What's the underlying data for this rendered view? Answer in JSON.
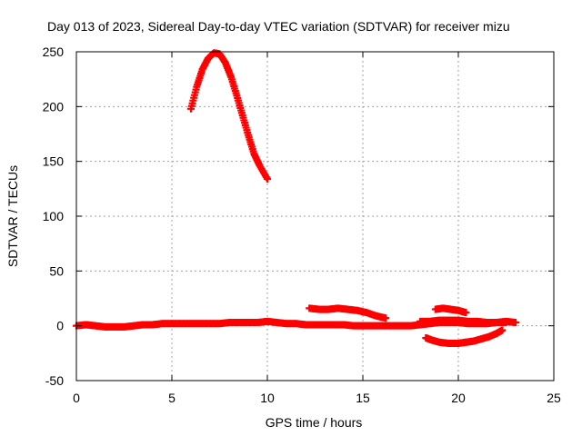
{
  "chart_data": {
    "type": "scatter",
    "title": "Day 013 of 2023, Sidereal Day-to-day VTEC variation (SDTVAR) for receiver mizu",
    "xlabel": "GPS time / hours",
    "ylabel": "SDTVAR / TECUs",
    "xlim": [
      0,
      25
    ],
    "ylim": [
      -50,
      250
    ],
    "xticks": [
      "0",
      "5",
      "10",
      "15",
      "20",
      "25"
    ],
    "yticks": [
      "-50",
      "0",
      "50",
      "100",
      "150",
      "200",
      "250"
    ],
    "grid": true,
    "legend": "none",
    "marker": "plus",
    "color": "#ff0000",
    "series": [
      {
        "x": [
          6.0,
          6.3,
          6.6,
          6.9,
          7.2,
          7.5,
          7.8,
          8.1,
          8.4,
          8.7,
          9.0,
          9.3,
          9.6,
          10.0
        ],
        "y": [
          198,
          218,
          234,
          244,
          249,
          248,
          240,
          227,
          210,
          192,
          174,
          157,
          146,
          134
        ]
      },
      {
        "x": [
          0.0,
          0.5,
          1.0,
          1.5,
          2.0,
          2.5,
          3.0,
          3.5,
          4.0,
          4.5,
          5.0,
          5.5,
          6.0,
          6.5,
          7.0,
          7.5,
          8.0,
          8.5,
          9.0,
          9.5,
          10.0,
          10.5,
          11.0,
          11.5,
          12.0,
          12.5,
          13.0,
          13.5,
          14.0,
          14.5,
          15.0,
          15.5,
          16.0,
          16.5,
          17.0,
          17.5,
          18.0,
          18.5,
          19.0,
          19.5,
          20.0,
          20.5,
          21.0,
          21.5,
          22.0,
          22.5,
          23.0
        ],
        "y": [
          0,
          1,
          0,
          -1,
          -1,
          -1,
          0,
          1,
          1,
          2,
          2,
          2,
          2,
          2,
          2,
          2,
          3,
          3,
          3,
          3,
          4,
          3,
          2,
          2,
          1,
          1,
          1,
          1,
          1,
          0,
          0,
          0,
          0,
          0,
          0,
          0,
          1,
          2,
          3,
          3,
          3,
          2,
          2,
          2,
          3,
          4,
          3
        ]
      },
      {
        "x": [
          12.2,
          12.7,
          13.2,
          13.7,
          14.2,
          14.7,
          15.2,
          15.7,
          16.2
        ],
        "y": [
          16,
          15,
          15,
          16,
          15,
          14,
          12,
          9,
          7
        ]
      },
      {
        "x": [
          18.3,
          18.6,
          19.0,
          19.5,
          20.0,
          20.4
        ],
        "y": [
          -11,
          -13,
          -15,
          -16,
          -16,
          -15
        ]
      },
      {
        "x": [
          18.8,
          19.2,
          19.6,
          20.0,
          20.4
        ],
        "y": [
          15,
          16,
          15,
          14,
          12
        ]
      },
      {
        "x": [
          20.4,
          20.8,
          21.2,
          21.6,
          22.0,
          22.3
        ],
        "y": [
          -15,
          -14,
          -12,
          -10,
          -7,
          -4
        ]
      },
      {
        "x": [
          18.0,
          18.5,
          19.0,
          19.5,
          20.0,
          20.5,
          21.0,
          21.5,
          22.0,
          22.5
        ],
        "y": [
          4,
          4,
          5,
          5,
          5,
          4,
          4,
          3,
          3,
          3
        ]
      }
    ]
  }
}
